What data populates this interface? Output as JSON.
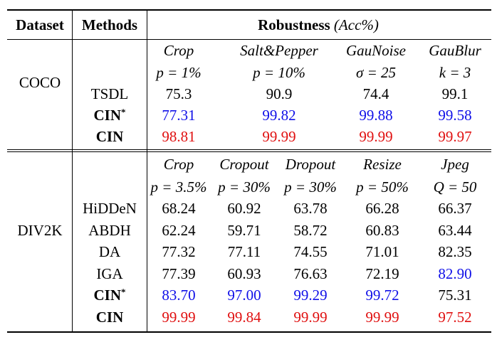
{
  "header": {
    "dataset": "Dataset",
    "methods": "Methods",
    "robustness": "Robustness",
    "metric": "(Acc%)"
  },
  "coco": {
    "dataset": "COCO",
    "attacks": [
      "Crop",
      "Salt&Pepper",
      "GauNoise",
      "GauBlur"
    ],
    "params": [
      "p = 1%",
      "p = 10%",
      "σ = 25",
      "k = 3"
    ],
    "rows": [
      {
        "method": "TSDL",
        "sup": "",
        "values": [
          "75.3",
          "90.9",
          "74.4",
          "99.1"
        ],
        "color": "#000000"
      },
      {
        "method": "CIN",
        "sup": "*",
        "values": [
          "77.31",
          "99.82",
          "99.88",
          "99.58"
        ],
        "color": "#1010e8"
      },
      {
        "method": "CIN",
        "sup": "",
        "values": [
          "98.81",
          "99.99",
          "99.99",
          "99.97"
        ],
        "color": "#e01010"
      }
    ]
  },
  "div2k": {
    "dataset": "DIV2K",
    "attacks": [
      "Crop",
      "Cropout",
      "Dropout",
      "Resize",
      "Jpeg"
    ],
    "params": [
      "p = 3.5%",
      "p = 30%",
      "p = 30%",
      "p = 50%",
      "Q = 50"
    ],
    "rows": [
      {
        "method": "HiDDeN",
        "sup": "",
        "values": [
          "68.24",
          "60.92",
          "63.78",
          "66.28",
          "66.37"
        ]
      },
      {
        "method": "ABDH",
        "sup": "",
        "values": [
          "62.24",
          "59.71",
          "58.72",
          "60.83",
          "63.44"
        ]
      },
      {
        "method": "DA",
        "sup": "",
        "values": [
          "77.32",
          "77.11",
          "74.55",
          "71.01",
          "82.35"
        ]
      },
      {
        "method": "IGA",
        "sup": "",
        "values": [
          "77.39",
          "60.93",
          "76.63",
          "72.19",
          "82.90"
        ]
      },
      {
        "method": "CIN",
        "sup": "*",
        "values": [
          "83.70",
          "97.00",
          "99.29",
          "99.72",
          "75.31"
        ]
      },
      {
        "method": "CIN",
        "sup": "",
        "values": [
          "99.99",
          "99.84",
          "99.99",
          "99.99",
          "97.52"
        ]
      }
    ],
    "cell_colors": [
      [
        "#000000",
        "#000000",
        "#000000",
        "#000000",
        "#000000"
      ],
      [
        "#000000",
        "#000000",
        "#000000",
        "#000000",
        "#000000"
      ],
      [
        "#000000",
        "#000000",
        "#000000",
        "#000000",
        "#000000"
      ],
      [
        "#000000",
        "#000000",
        "#000000",
        "#000000",
        "#1010e8"
      ],
      [
        "#1010e8",
        "#1010e8",
        "#1010e8",
        "#1010e8",
        "#000000"
      ],
      [
        "#e01010",
        "#e01010",
        "#e01010",
        "#e01010",
        "#e01010"
      ]
    ]
  }
}
